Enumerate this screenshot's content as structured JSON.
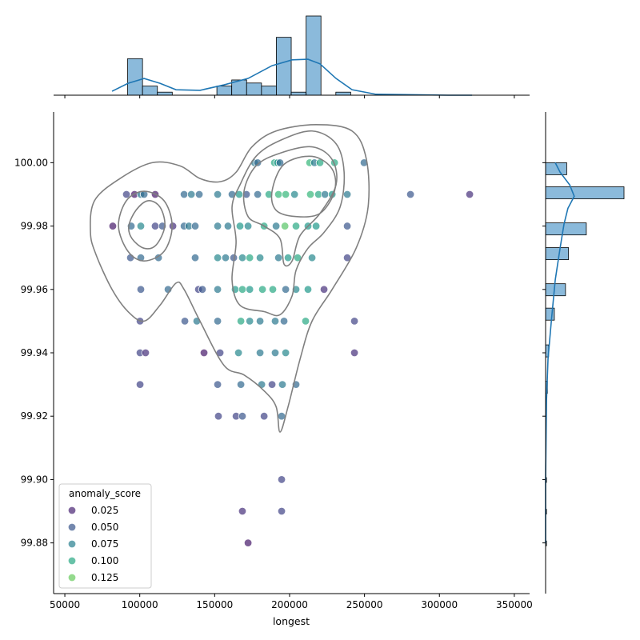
{
  "chart_data": {
    "type": "scatter",
    "xlabel": "longest",
    "ylabel": "",
    "xlim": [
      42500,
      360200
    ],
    "ylim": [
      99.864,
      100.016
    ],
    "x_ticks": [
      50000,
      100000,
      150000,
      200000,
      250000,
      300000,
      350000
    ],
    "y_ticks": [
      "99.88",
      "99.90",
      "99.92",
      "99.94",
      "99.96",
      "99.98",
      "100.00"
    ],
    "grid": false,
    "legend": {
      "title": "anomaly_score",
      "placement": "lower-left",
      "entries": [
        "0.025",
        "0.050",
        "0.075",
        "0.100",
        "0.125"
      ]
    },
    "colormap": "viridis",
    "hist_color": "#8bbadb",
    "kde_color": "#1f77b4",
    "contour_color": "#808080",
    "points": [
      [
        176600,
        100.0,
        0.07
      ],
      [
        178700,
        100.0,
        0.06
      ],
      [
        189900,
        100.0,
        0.1
      ],
      [
        192000,
        100.0,
        0.09
      ],
      [
        193600,
        100.0,
        0.06
      ],
      [
        213400,
        100.0,
        0.11
      ],
      [
        216600,
        100.0,
        0.07
      ],
      [
        220300,
        100.0,
        0.1
      ],
      [
        230000,
        100.0,
        0.1
      ],
      [
        249700,
        100.0,
        0.06
      ],
      [
        91100,
        99.99,
        0.04
      ],
      [
        96500,
        99.99,
        0.02
      ],
      [
        100700,
        99.99,
        0.07
      ],
      [
        102900,
        99.99,
        0.06
      ],
      [
        110300,
        99.99,
        0.02
      ],
      [
        129600,
        99.99,
        0.06
      ],
      [
        134400,
        99.99,
        0.07
      ],
      [
        139700,
        99.99,
        0.06
      ],
      [
        152000,
        99.99,
        0.07
      ],
      [
        161600,
        99.99,
        0.06
      ],
      [
        166400,
        99.99,
        0.09
      ],
      [
        171200,
        99.99,
        0.05
      ],
      [
        178700,
        99.99,
        0.06
      ],
      [
        186200,
        99.99,
        0.1
      ],
      [
        192600,
        99.99,
        0.11
      ],
      [
        197400,
        99.99,
        0.11
      ],
      [
        203300,
        99.99,
        0.08
      ],
      [
        213900,
        99.99,
        0.11
      ],
      [
        219300,
        99.99,
        0.1
      ],
      [
        223600,
        99.99,
        0.07
      ],
      [
        228400,
        99.99,
        0.09
      ],
      [
        238500,
        99.99,
        0.07
      ],
      [
        280700,
        99.99,
        0.05
      ],
      [
        320200,
        99.99,
        0.03
      ],
      [
        82000,
        99.98,
        0.02
      ],
      [
        94300,
        99.98,
        0.06
      ],
      [
        100700,
        99.98,
        0.08
      ],
      [
        110300,
        99.98,
        0.04
      ],
      [
        115100,
        99.98,
        0.05
      ],
      [
        122100,
        99.98,
        0.03
      ],
      [
        129600,
        99.98,
        0.06
      ],
      [
        132800,
        99.98,
        0.07
      ],
      [
        137000,
        99.98,
        0.06
      ],
      [
        152000,
        99.98,
        0.07
      ],
      [
        158900,
        99.98,
        0.07
      ],
      [
        166900,
        99.98,
        0.09
      ],
      [
        172300,
        99.98,
        0.08
      ],
      [
        183000,
        99.98,
        0.1
      ],
      [
        191000,
        99.98,
        0.07
      ],
      [
        196900,
        99.98,
        0.12
      ],
      [
        204300,
        99.98,
        0.1
      ],
      [
        212300,
        99.98,
        0.09
      ],
      [
        217700,
        99.98,
        0.09
      ],
      [
        238500,
        99.98,
        0.05
      ],
      [
        93800,
        99.97,
        0.05
      ],
      [
        100700,
        99.97,
        0.06
      ],
      [
        112500,
        99.97,
        0.06
      ],
      [
        137000,
        99.97,
        0.06
      ],
      [
        152000,
        99.97,
        0.08
      ],
      [
        157300,
        99.97,
        0.07
      ],
      [
        162700,
        99.97,
        0.05
      ],
      [
        168500,
        99.97,
        0.08
      ],
      [
        173400,
        99.97,
        0.1
      ],
      [
        180300,
        99.97,
        0.08
      ],
      [
        192600,
        99.97,
        0.07
      ],
      [
        199000,
        99.97,
        0.09
      ],
      [
        205400,
        99.97,
        0.1
      ],
      [
        215000,
        99.97,
        0.08
      ],
      [
        238500,
        99.97,
        0.04
      ],
      [
        100700,
        99.96,
        0.05
      ],
      [
        118900,
        99.96,
        0.06
      ],
      [
        139200,
        99.96,
        0.04
      ],
      [
        141800,
        99.96,
        0.05
      ],
      [
        152000,
        99.96,
        0.07
      ],
      [
        163700,
        99.96,
        0.09
      ],
      [
        168500,
        99.96,
        0.1
      ],
      [
        173400,
        99.96,
        0.09
      ],
      [
        181900,
        99.96,
        0.1
      ],
      [
        188800,
        99.96,
        0.1
      ],
      [
        197400,
        99.96,
        0.06
      ],
      [
        204300,
        99.96,
        0.08
      ],
      [
        212300,
        99.96,
        0.09
      ],
      [
        223000,
        99.96,
        0.03
      ],
      [
        100200,
        99.95,
        0.04
      ],
      [
        130100,
        99.95,
        0.05
      ],
      [
        138100,
        99.95,
        0.07
      ],
      [
        152000,
        99.95,
        0.06
      ],
      [
        167500,
        99.95,
        0.1
      ],
      [
        173400,
        99.95,
        0.08
      ],
      [
        180300,
        99.95,
        0.07
      ],
      [
        190400,
        99.95,
        0.07
      ],
      [
        196300,
        99.95,
        0.06
      ],
      [
        210700,
        99.95,
        0.1
      ],
      [
        243300,
        99.95,
        0.04
      ],
      [
        100200,
        99.94,
        0.04
      ],
      [
        103900,
        99.94,
        0.03
      ],
      [
        142900,
        99.94,
        0.02
      ],
      [
        153600,
        99.94,
        0.04
      ],
      [
        165900,
        99.94,
        0.08
      ],
      [
        180300,
        99.94,
        0.07
      ],
      [
        190400,
        99.94,
        0.07
      ],
      [
        197400,
        99.94,
        0.08
      ],
      [
        243300,
        99.94,
        0.03
      ],
      [
        100200,
        99.93,
        0.04
      ],
      [
        152000,
        99.93,
        0.05
      ],
      [
        167500,
        99.93,
        0.06
      ],
      [
        181400,
        99.93,
        0.07
      ],
      [
        188300,
        99.93,
        0.04
      ],
      [
        195200,
        99.93,
        0.07
      ],
      [
        204300,
        99.93,
        0.06
      ],
      [
        152500,
        99.92,
        0.04
      ],
      [
        164300,
        99.92,
        0.04
      ],
      [
        168500,
        99.92,
        0.05
      ],
      [
        183000,
        99.92,
        0.04
      ],
      [
        194700,
        99.92,
        0.06
      ],
      [
        194700,
        99.9,
        0.04
      ],
      [
        168500,
        99.89,
        0.03
      ],
      [
        194700,
        99.89,
        0.04
      ],
      [
        172300,
        99.88,
        0.02
      ]
    ],
    "contours": [
      [
        [
          67100,
          99.978
        ],
        [
          69800,
          99.988
        ],
        [
          86800,
          99.995
        ],
        [
          108200,
          100.0
        ],
        [
          126900,
          99.999
        ],
        [
          140200,
          99.995
        ],
        [
          153600,
          99.994
        ],
        [
          164300,
          99.997
        ],
        [
          174900,
          100.005
        ],
        [
          191000,
          100.01
        ],
        [
          217700,
          100.012
        ],
        [
          241700,
          100.01
        ],
        [
          251300,
          100.001
        ],
        [
          252400,
          99.986
        ],
        [
          244400,
          99.973
        ],
        [
          228400,
          99.96
        ],
        [
          215000,
          99.95
        ],
        [
          207000,
          99.938
        ],
        [
          199000,
          99.923
        ],
        [
          193600,
          99.915
        ],
        [
          191000,
          99.923
        ],
        [
          183000,
          99.928
        ],
        [
          169600,
          99.933
        ],
        [
          156300,
          99.936
        ],
        [
          140200,
          99.95
        ],
        [
          129600,
          99.96
        ],
        [
          124200,
          99.962
        ],
        [
          113500,
          99.955
        ],
        [
          102900,
          99.95
        ],
        [
          92200,
          99.953
        ],
        [
          81500,
          99.96
        ],
        [
          70800,
          99.971
        ]
      ],
      [
        [
          85800,
          99.98
        ],
        [
          91100,
          99.988
        ],
        [
          102900,
          99.991
        ],
        [
          116200,
          99.988
        ],
        [
          121600,
          99.98
        ],
        [
          116200,
          99.972
        ],
        [
          102900,
          99.969
        ],
        [
          92200,
          99.972
        ]
      ],
      [
        [
          92700,
          99.98
        ],
        [
          97500,
          99.985
        ],
        [
          105500,
          99.988
        ],
        [
          113500,
          99.986
        ],
        [
          116700,
          99.98
        ],
        [
          110900,
          99.974
        ],
        [
          102900,
          99.973
        ],
        [
          94900,
          99.976
        ]
      ],
      [
        [
          161600,
          99.986
        ],
        [
          166900,
          99.993
        ],
        [
          177600,
          100.002
        ],
        [
          193600,
          100.007
        ],
        [
          215000,
          100.01
        ],
        [
          231000,
          100.006
        ],
        [
          236400,
          99.997
        ],
        [
          233700,
          99.986
        ],
        [
          223000,
          99.978
        ],
        [
          212300,
          99.973
        ],
        [
          204300,
          99.966
        ],
        [
          201700,
          99.958
        ],
        [
          193600,
          99.952
        ],
        [
          183000,
          99.953
        ],
        [
          166900,
          99.955
        ],
        [
          161600,
          99.963
        ],
        [
          164300,
          99.975
        ]
      ],
      [
        [
          169600,
          99.991
        ],
        [
          177600,
          99.999
        ],
        [
          193600,
          100.003
        ],
        [
          215000,
          100.005
        ],
        [
          228400,
          100.001
        ],
        [
          231000,
          99.993
        ],
        [
          220300,
          99.984
        ],
        [
          207000,
          99.977
        ],
        [
          201700,
          99.969
        ],
        [
          196300,
          99.968
        ],
        [
          193600,
          99.976
        ],
        [
          183000,
          99.98
        ],
        [
          172300,
          99.983
        ]
      ],
      [
        [
          188300,
          99.991
        ],
        [
          196300,
          99.9995
        ],
        [
          215000,
          100.002
        ],
        [
          228400,
          99.998
        ],
        [
          230000,
          99.991
        ],
        [
          220300,
          99.984
        ],
        [
          204300,
          99.983
        ],
        [
          191000,
          99.985
        ]
      ]
    ],
    "x_hist": {
      "start": 82000,
      "bin_width": 9925,
      "counts": [
        0,
        12,
        3,
        1,
        0,
        0,
        0,
        3,
        5,
        4,
        3,
        19,
        1,
        26,
        0,
        1,
        0,
        0,
        0,
        0,
        0,
        0,
        0,
        0
      ]
    },
    "x_kde": [
      [
        81500,
        1.3
      ],
      [
        92200,
        3.9
      ],
      [
        102900,
        5.5
      ],
      [
        113500,
        3.9
      ],
      [
        124200,
        1.8
      ],
      [
        140200,
        1.6
      ],
      [
        156300,
        3.4
      ],
      [
        172300,
        5.5
      ],
      [
        188300,
        9.7
      ],
      [
        201700,
        11.6
      ],
      [
        212300,
        11.8
      ],
      [
        220300,
        10.3
      ],
      [
        231000,
        5.5
      ],
      [
        241700,
        1.8
      ],
      [
        257700,
        0.3
      ],
      [
        305800,
        0
      ],
      [
        321800,
        0
      ]
    ],
    "y_hist": [
      {
        "lo": 99.9962,
        "hi": 100.0,
        "count": 7
      },
      {
        "lo": 99.9886,
        "hi": 99.9924,
        "count": 26
      },
      {
        "lo": 99.9772,
        "hi": 99.981,
        "count": 13.5
      },
      {
        "lo": 99.9694,
        "hi": 99.9732,
        "count": 7.6
      },
      {
        "lo": 99.958,
        "hi": 99.9618,
        "count": 6.6
      },
      {
        "lo": 99.9503,
        "hi": 99.9541,
        "count": 2.9
      },
      {
        "lo": 99.9387,
        "hi": 99.9425,
        "count": 1
      },
      {
        "lo": 99.9272,
        "hi": 99.931,
        "count": 0.6
      },
      {
        "lo": 99.9191,
        "hi": 99.9229,
        "count": 0.3
      },
      {
        "lo": 99.8991,
        "hi": 99.9006,
        "count": 0.3
      },
      {
        "lo": 99.8891,
        "hi": 99.8906,
        "count": 0.3
      },
      {
        "lo": 99.8791,
        "hi": 99.8806,
        "count": 0.3
      }
    ],
    "y_kde": [
      [
        3.2,
        100.0
      ],
      [
        4.8,
        99.997
      ],
      [
        8,
        99.993
      ],
      [
        9.5,
        99.9894
      ],
      [
        7.4,
        99.9856
      ],
      [
        6.1,
        99.9806
      ],
      [
        4.8,
        99.973
      ],
      [
        3.2,
        99.963
      ],
      [
        1.9,
        99.95
      ],
      [
        0.8,
        99.938
      ],
      [
        0.3,
        99.925
      ],
      [
        0,
        99.9
      ],
      [
        0,
        99.88
      ]
    ]
  }
}
